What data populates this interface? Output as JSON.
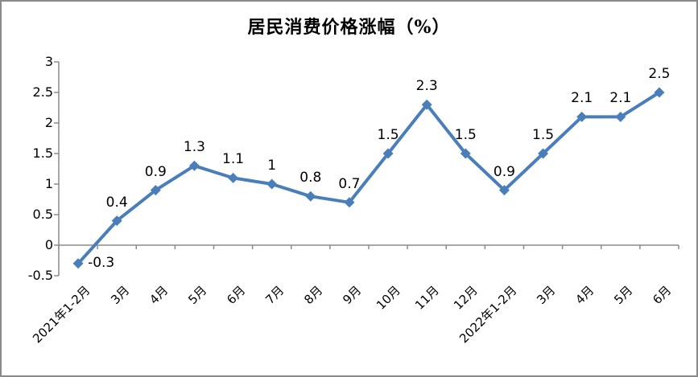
{
  "window": {
    "background": "#FFFFFF",
    "border_color": "#8A8A8A"
  },
  "chart_data": {
    "type": "line",
    "title": "居民消费价格涨幅（%）",
    "categories": [
      "2021年1-2月",
      "3月",
      "4月",
      "5月",
      "6月",
      "7月",
      "8月",
      "9月",
      "10月",
      "11月",
      "12月",
      "2022年1-2月",
      "3月",
      "4月",
      "5月",
      "6月"
    ],
    "series": [
      {
        "values": [
          -0.3,
          0.4,
          0.9,
          1.3,
          1.1,
          1,
          0.8,
          0.7,
          1.5,
          2.3,
          1.5,
          0.9,
          1.5,
          2.1,
          2.1,
          2.5
        ],
        "labels": [
          "-0.3",
          "0.4",
          "0.9",
          "1.3",
          "1.1",
          "1",
          "0.8",
          "0.7",
          "1.5",
          "2.3",
          "1.5",
          "0.9",
          "1.5",
          "2.1",
          "2.1",
          "2.5"
        ],
        "color": "#4A7EBB",
        "marker": "diamond"
      }
    ],
    "xlabel": "",
    "ylabel": "",
    "ylim": [
      -0.5,
      3
    ],
    "y_tick_step": 0.5,
    "y_tick_labels": [
      "3",
      "2.5",
      "2",
      "1.5",
      "1",
      "0.5",
      "0",
      "-0.5"
    ],
    "grid": false,
    "legend": "none",
    "axis_color": "#8C8C8C",
    "label_color": "#000000"
  }
}
